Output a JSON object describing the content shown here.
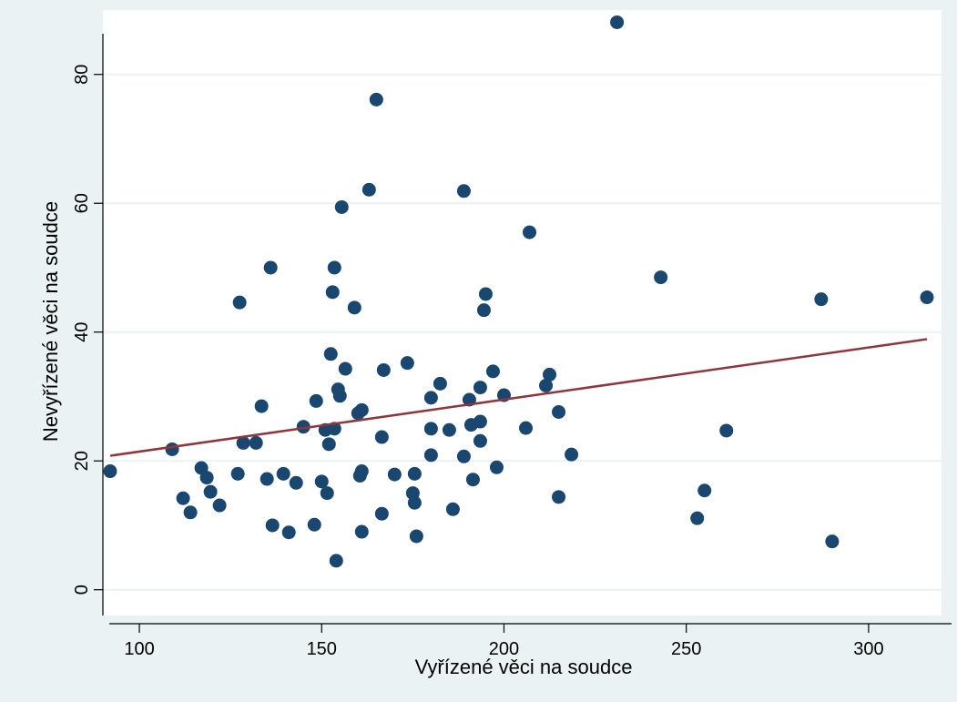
{
  "chart_data": {
    "type": "scatter",
    "title": "",
    "xlabel": "Vyřízené věci na soudce",
    "ylabel": "Nevyřízené věci na soudce",
    "xlim": [
      90,
      320
    ],
    "ylim": [
      -4,
      90
    ],
    "xticks": [
      100,
      150,
      200,
      250,
      300
    ],
    "yticks": [
      0,
      20,
      40,
      60,
      80
    ],
    "grid": true,
    "legend": "none",
    "colors": {
      "outer_background": "#eaf2f3",
      "plot_background": "#ffffff",
      "grid": "#eaf2f3",
      "points": "#1a476f",
      "fit_line": "#90353b"
    },
    "fit_line": {
      "x": [
        92,
        316
      ],
      "y": [
        20.8,
        38.9
      ]
    },
    "points": [
      {
        "x": 92,
        "y": 18.4
      },
      {
        "x": 109,
        "y": 21.8
      },
      {
        "x": 112,
        "y": 14.2
      },
      {
        "x": 114,
        "y": 12.0
      },
      {
        "x": 117,
        "y": 18.9
      },
      {
        "x": 118.5,
        "y": 17.4
      },
      {
        "x": 119.5,
        "y": 15.2
      },
      {
        "x": 122,
        "y": 13.1
      },
      {
        "x": 127,
        "y": 18.0
      },
      {
        "x": 127.5,
        "y": 44.6
      },
      {
        "x": 128.5,
        "y": 22.8
      },
      {
        "x": 132,
        "y": 22.8
      },
      {
        "x": 133.5,
        "y": 28.5
      },
      {
        "x": 135,
        "y": 17.2
      },
      {
        "x": 136,
        "y": 50.0
      },
      {
        "x": 136.5,
        "y": 10.0
      },
      {
        "x": 139.5,
        "y": 18.0
      },
      {
        "x": 141,
        "y": 8.9
      },
      {
        "x": 143,
        "y": 16.6
      },
      {
        "x": 145,
        "y": 25.3
      },
      {
        "x": 148,
        "y": 10.1
      },
      {
        "x": 148.5,
        "y": 29.3
      },
      {
        "x": 150,
        "y": 16.8
      },
      {
        "x": 151,
        "y": 24.8
      },
      {
        "x": 151.5,
        "y": 15.0
      },
      {
        "x": 152,
        "y": 22.6
      },
      {
        "x": 152.5,
        "y": 36.6
      },
      {
        "x": 153,
        "y": 46.2
      },
      {
        "x": 153.5,
        "y": 50.0
      },
      {
        "x": 153.5,
        "y": 25.0
      },
      {
        "x": 154,
        "y": 4.5
      },
      {
        "x": 154.5,
        "y": 31.1
      },
      {
        "x": 155,
        "y": 30.1
      },
      {
        "x": 155.5,
        "y": 59.4
      },
      {
        "x": 156.5,
        "y": 34.3
      },
      {
        "x": 159,
        "y": 43.8
      },
      {
        "x": 160,
        "y": 27.4
      },
      {
        "x": 160.5,
        "y": 17.7
      },
      {
        "x": 161,
        "y": 18.4
      },
      {
        "x": 161,
        "y": 27.9
      },
      {
        "x": 161,
        "y": 9.0
      },
      {
        "x": 163,
        "y": 62.1
      },
      {
        "x": 165,
        "y": 76.1
      },
      {
        "x": 166.5,
        "y": 11.8
      },
      {
        "x": 166.5,
        "y": 23.7
      },
      {
        "x": 167,
        "y": 34.1
      },
      {
        "x": 170,
        "y": 17.9
      },
      {
        "x": 173.5,
        "y": 35.2
      },
      {
        "x": 175,
        "y": 15.0
      },
      {
        "x": 175.5,
        "y": 13.5
      },
      {
        "x": 175.5,
        "y": 18.0
      },
      {
        "x": 176,
        "y": 8.3
      },
      {
        "x": 180,
        "y": 20.9
      },
      {
        "x": 180,
        "y": 25.0
      },
      {
        "x": 180,
        "y": 29.8
      },
      {
        "x": 182.5,
        "y": 32.0
      },
      {
        "x": 185,
        "y": 24.8
      },
      {
        "x": 186,
        "y": 12.5
      },
      {
        "x": 189,
        "y": 61.9
      },
      {
        "x": 189,
        "y": 20.7
      },
      {
        "x": 190.5,
        "y": 29.5
      },
      {
        "x": 191,
        "y": 25.6
      },
      {
        "x": 191.5,
        "y": 17.1
      },
      {
        "x": 193.5,
        "y": 31.4
      },
      {
        "x": 193.5,
        "y": 26.1
      },
      {
        "x": 193.5,
        "y": 23.1
      },
      {
        "x": 194.5,
        "y": 43.4
      },
      {
        "x": 195,
        "y": 45.9
      },
      {
        "x": 197,
        "y": 33.9
      },
      {
        "x": 198,
        "y": 19.0
      },
      {
        "x": 200,
        "y": 30.2
      },
      {
        "x": 206,
        "y": 25.1
      },
      {
        "x": 207,
        "y": 55.5
      },
      {
        "x": 211.5,
        "y": 31.7
      },
      {
        "x": 212.5,
        "y": 33.4
      },
      {
        "x": 215,
        "y": 14.4
      },
      {
        "x": 215,
        "y": 27.6
      },
      {
        "x": 218.5,
        "y": 21.0
      },
      {
        "x": 231,
        "y": 88.1
      },
      {
        "x": 243,
        "y": 48.5
      },
      {
        "x": 253,
        "y": 11.1
      },
      {
        "x": 255,
        "y": 15.4
      },
      {
        "x": 261,
        "y": 24.7
      },
      {
        "x": 287,
        "y": 45.1
      },
      {
        "x": 290,
        "y": 7.5
      },
      {
        "x": 316,
        "y": 45.4
      }
    ]
  }
}
